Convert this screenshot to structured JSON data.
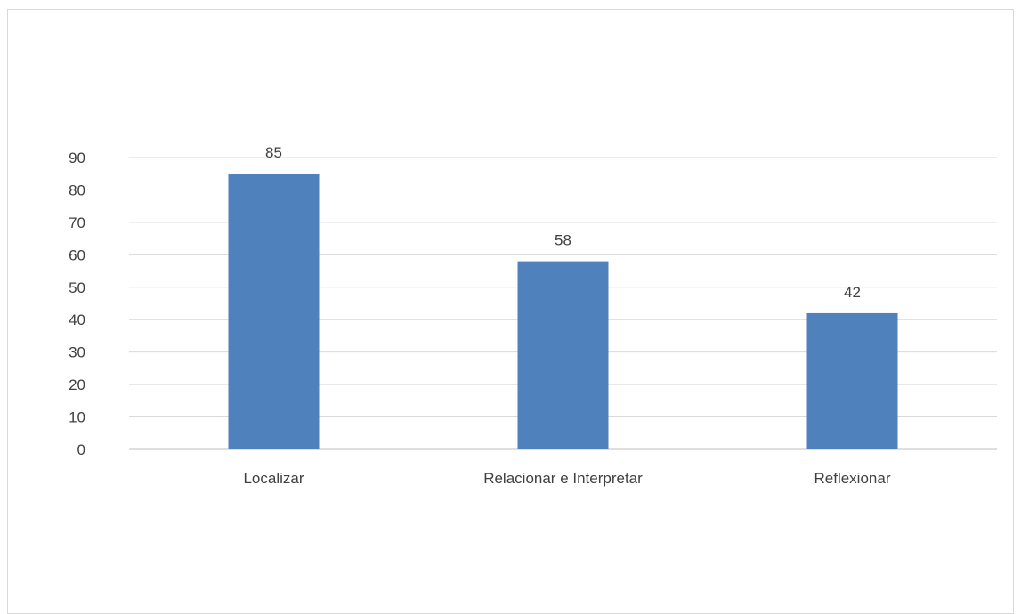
{
  "chart_data": {
    "type": "bar",
    "categories": [
      "Localizar",
      "Relacionar e Interpretar",
      "Reflexionar"
    ],
    "values": [
      85,
      58,
      42
    ],
    "ylim": [
      0,
      90
    ],
    "yticks": [
      0,
      10,
      20,
      30,
      40,
      50,
      60,
      70,
      80,
      90
    ],
    "grid": true,
    "data_labels": true,
    "bar_color": "#4f81bd",
    "gridline_color": "#d9d9d9",
    "text_color": "#404040"
  }
}
